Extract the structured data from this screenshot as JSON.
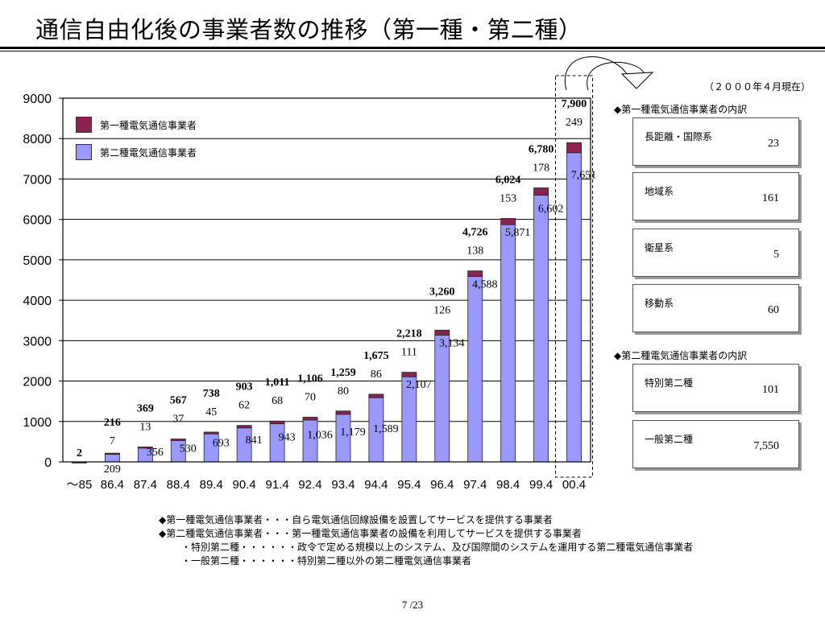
{
  "title": "通信自由化後の事業者数の推移（第一種・第二種）",
  "as_of": "（２０００年４月現在）",
  "legend": {
    "type1": "第一種電気通信事業者",
    "type2": "第二種電気通信事業者"
  },
  "colors": {
    "type1": "#8b2252",
    "type2": "#9999ff"
  },
  "chart_data": {
    "type": "bar",
    "stacked": true,
    "categories": [
      "～85",
      "86.4",
      "87.4",
      "88.4",
      "89.4",
      "90.4",
      "91.4",
      "92.4",
      "93.4",
      "94.4",
      "95.4",
      "96.4",
      "97.4",
      "98.4",
      "99.4",
      "00.4"
    ],
    "series": [
      {
        "name": "第二種電気通信事業者",
        "values": [
          null,
          209,
          356,
          530,
          693,
          841,
          943,
          1036,
          1179,
          1589,
          2107,
          3134,
          4588,
          5871,
          6602,
          7651
        ],
        "labels": [
          "",
          "209",
          "356",
          "530",
          "693",
          "841",
          "943",
          "1,036",
          "1,179",
          "1,589",
          "2,107",
          "3,134",
          "4,588",
          "5,871",
          "6,602",
          "7,651"
        ]
      },
      {
        "name": "第一種電気通信事業者",
        "values": [
          2,
          7,
          13,
          37,
          45,
          62,
          68,
          70,
          80,
          86,
          111,
          126,
          138,
          153,
          178,
          249
        ],
        "labels": [
          "2",
          "7",
          "13",
          "37",
          "45",
          "62",
          "68",
          "70",
          "80",
          "86",
          "111",
          "126",
          "138",
          "153",
          "178",
          "249"
        ]
      }
    ],
    "totals": [
      "2",
      "216",
      "369",
      "567",
      "738",
      "903",
      "1,011",
      "1,106",
      "1,259",
      "1,675",
      "2,218",
      "3,260",
      "4,726",
      "6,024",
      "6,780",
      "7,900"
    ],
    "y_ticks": [
      "0",
      "1000",
      "2000",
      "3000",
      "4000",
      "5000",
      "6000",
      "7000",
      "8000",
      "9000"
    ],
    "ylim": [
      0,
      9000
    ],
    "grid": true,
    "highlight_category": "00.4"
  },
  "breakdown": {
    "type1_heading": "◆第一種電気通信事業者の内訳",
    "type1_items": [
      {
        "label": "長距離・国際系",
        "value": "23"
      },
      {
        "label": "地域系",
        "value": "161"
      },
      {
        "label": "衛星系",
        "value": "5"
      },
      {
        "label": "移動系",
        "value": "60"
      }
    ],
    "type2_heading": "◆第二種電気通信事業者の内訳",
    "type2_items": [
      {
        "label": "特別第二種",
        "value": "101"
      },
      {
        "label": "一般第二種",
        "value": "7,550"
      }
    ]
  },
  "notes": [
    "◆第一種電気通信事業者・・・自ら電気通信回線設備を設置してサービスを提供する事業者",
    "◆第二種電気通信事業者・・・第一種電気通信事業者の設備を利用してサービスを提供する事業者",
    "・特別第二種・・・・・・政令で定める規模以上のシステム、及び国際間のシステムを運用する第二種電気通信事業者",
    "・一般第二種・・・・・・特別第二種以外の第二種電気通信事業者"
  ],
  "page_number": "7 /23"
}
